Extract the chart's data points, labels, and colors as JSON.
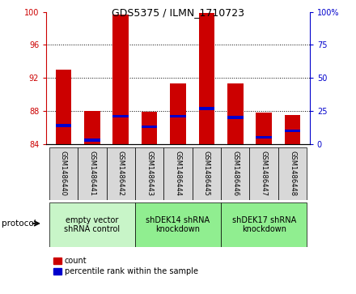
{
  "title": "GDS5375 / ILMN_1710723",
  "samples": [
    "GSM1486440",
    "GSM1486441",
    "GSM1486442",
    "GSM1486443",
    "GSM1486444",
    "GSM1486445",
    "GSM1486446",
    "GSM1486447",
    "GSM1486448"
  ],
  "count_values": [
    93.0,
    88.0,
    99.7,
    87.9,
    91.3,
    99.9,
    91.3,
    87.8,
    87.5
  ],
  "percentile_values": [
    14.0,
    3.0,
    21.0,
    13.0,
    21.0,
    27.0,
    20.0,
    5.0,
    10.0
  ],
  "bar_bottom": 84,
  "ylim_left": [
    84,
    100
  ],
  "ylim_right": [
    0,
    100
  ],
  "yticks_left": [
    84,
    88,
    92,
    96,
    100
  ],
  "yticks_right": [
    0,
    25,
    50,
    75,
    100
  ],
  "ytick_labels_right": [
    "0",
    "25",
    "50",
    "75",
    "100%"
  ],
  "bar_color_red": "#cc0000",
  "bar_color_blue": "#0000cc",
  "bar_width": 0.55,
  "blue_bar_height": 0.35,
  "groups": [
    {
      "label": "empty vector\nshRNA control",
      "start": 0,
      "end": 3,
      "color": "#c8f5c8"
    },
    {
      "label": "shDEK14 shRNA\nknockdown",
      "start": 3,
      "end": 6,
      "color": "#90ee90"
    },
    {
      "label": "shDEK17 shRNA\nknockdown",
      "start": 6,
      "end": 9,
      "color": "#90ee90"
    }
  ],
  "protocol_label": "protocol",
  "legend_count": "count",
  "legend_percentile": "percentile rank within the sample",
  "tick_color_left": "#cc0000",
  "tick_color_right": "#0000cc",
  "sample_box_color": "#d8d8d8",
  "title_fontsize": 9,
  "tick_fontsize": 7,
  "sample_fontsize": 6,
  "group_fontsize": 7,
  "legend_fontsize": 7
}
